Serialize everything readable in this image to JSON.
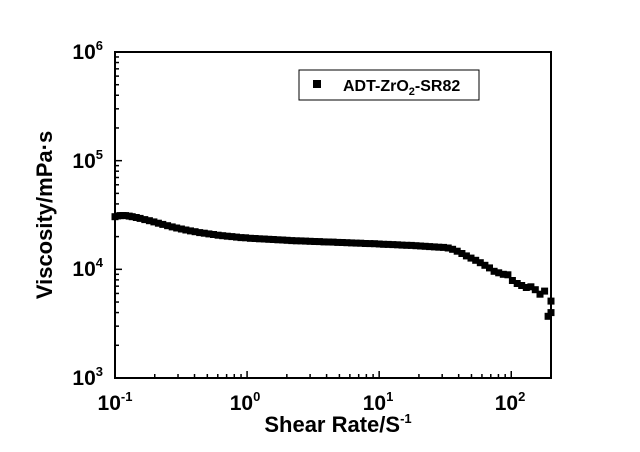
{
  "chart_data": {
    "type": "scatter",
    "xscale": "log",
    "yscale": "log",
    "xlim": [
      0.1,
      200
    ],
    "ylim": [
      1000,
      1000000
    ],
    "xticks": [
      {
        "value": 0.1,
        "base": "10",
        "exp": "-1"
      },
      {
        "value": 1,
        "base": "10",
        "exp": "0"
      },
      {
        "value": 10,
        "base": "10",
        "exp": "1"
      },
      {
        "value": 100,
        "base": "10",
        "exp": "2"
      }
    ],
    "yticks": [
      {
        "value": 1000,
        "base": "10",
        "exp": "3"
      },
      {
        "value": 10000,
        "base": "10",
        "exp": "4"
      },
      {
        "value": 100000,
        "base": "10",
        "exp": "5"
      },
      {
        "value": 1000000,
        "base": "10",
        "exp": "6"
      }
    ],
    "xlabel": {
      "main": "Shear Rate/S",
      "sup": "-1"
    },
    "ylabel": "Viscosity/mPa·s",
    "legend": {
      "placement": "top-right",
      "parts": [
        "ADT-ZrO",
        "2",
        "-SR82"
      ]
    },
    "grid": false,
    "series": [
      {
        "marker": "square",
        "color": "#000000",
        "points": [
          [
            0.1,
            30500
          ],
          [
            0.105,
            31000
          ],
          [
            0.11,
            31200
          ],
          [
            0.115,
            31300
          ],
          [
            0.12,
            31200
          ],
          [
            0.128,
            30900
          ],
          [
            0.135,
            30500
          ],
          [
            0.145,
            30000
          ],
          [
            0.155,
            29400
          ],
          [
            0.168,
            28700
          ],
          [
            0.182,
            28000
          ],
          [
            0.197,
            27300
          ],
          [
            0.213,
            26600
          ],
          [
            0.23,
            25900
          ],
          [
            0.25,
            25200
          ],
          [
            0.271,
            24600
          ],
          [
            0.293,
            24000
          ],
          [
            0.318,
            23500
          ],
          [
            0.344,
            23000
          ],
          [
            0.373,
            22600
          ],
          [
            0.404,
            22200
          ],
          [
            0.438,
            21800
          ],
          [
            0.474,
            21500
          ],
          [
            0.514,
            21200
          ],
          [
            0.557,
            20900
          ],
          [
            0.603,
            20600
          ],
          [
            0.654,
            20400
          ],
          [
            0.708,
            20200
          ],
          [
            0.767,
            20000
          ],
          [
            0.831,
            19800
          ],
          [
            0.9,
            19600
          ],
          [
            0.975,
            19500
          ],
          [
            1.06,
            19300
          ],
          [
            1.15,
            19200
          ],
          [
            1.24,
            19100
          ],
          [
            1.35,
            19000
          ],
          [
            1.46,
            18900
          ],
          [
            1.58,
            18800
          ],
          [
            1.71,
            18700
          ],
          [
            1.86,
            18600
          ],
          [
            2.01,
            18500
          ],
          [
            2.18,
            18400
          ],
          [
            2.36,
            18300
          ],
          [
            2.56,
            18250
          ],
          [
            2.77,
            18200
          ],
          [
            3.0,
            18100
          ],
          [
            3.25,
            18050
          ],
          [
            3.53,
            18000
          ],
          [
            3.82,
            17900
          ],
          [
            4.14,
            17850
          ],
          [
            4.48,
            17800
          ],
          [
            4.86,
            17700
          ],
          [
            5.26,
            17650
          ],
          [
            5.7,
            17600
          ],
          [
            6.18,
            17500
          ],
          [
            6.69,
            17450
          ],
          [
            7.25,
            17400
          ],
          [
            7.86,
            17300
          ],
          [
            8.51,
            17250
          ],
          [
            9.22,
            17200
          ],
          [
            10.0,
            17100
          ],
          [
            10.8,
            17000
          ],
          [
            11.7,
            16950
          ],
          [
            12.7,
            16900
          ],
          [
            13.8,
            16800
          ],
          [
            14.9,
            16700
          ],
          [
            16.2,
            16650
          ],
          [
            17.5,
            16600
          ],
          [
            19.0,
            16500
          ],
          [
            20.6,
            16400
          ],
          [
            22.3,
            16300
          ],
          [
            24.1,
            16200
          ],
          [
            26.2,
            16100
          ],
          [
            28.3,
            16000
          ],
          [
            30.7,
            15900
          ],
          [
            33.3,
            15700
          ],
          [
            36.0,
            15300
          ],
          [
            39.0,
            14700
          ],
          [
            42.3,
            14000
          ],
          [
            45.8,
            13300
          ],
          [
            49.6,
            12700
          ],
          [
            53.8,
            12100
          ],
          [
            58.3,
            11500
          ],
          [
            63.2,
            10900
          ],
          [
            68.5,
            10300
          ],
          [
            74.2,
            9600
          ],
          [
            80.4,
            9300
          ],
          [
            87.1,
            9000
          ],
          [
            94.4,
            8900
          ],
          [
            102,
            7900
          ],
          [
            111,
            7400
          ],
          [
            120,
            7100
          ],
          [
            130,
            6800
          ],
          [
            141,
            6900
          ],
          [
            152,
            6500
          ],
          [
            165,
            5900
          ],
          [
            179,
            6300
          ],
          [
            190,
            3700
          ],
          [
            200,
            5100
          ],
          [
            205,
            4000
          ]
        ]
      }
    ]
  }
}
